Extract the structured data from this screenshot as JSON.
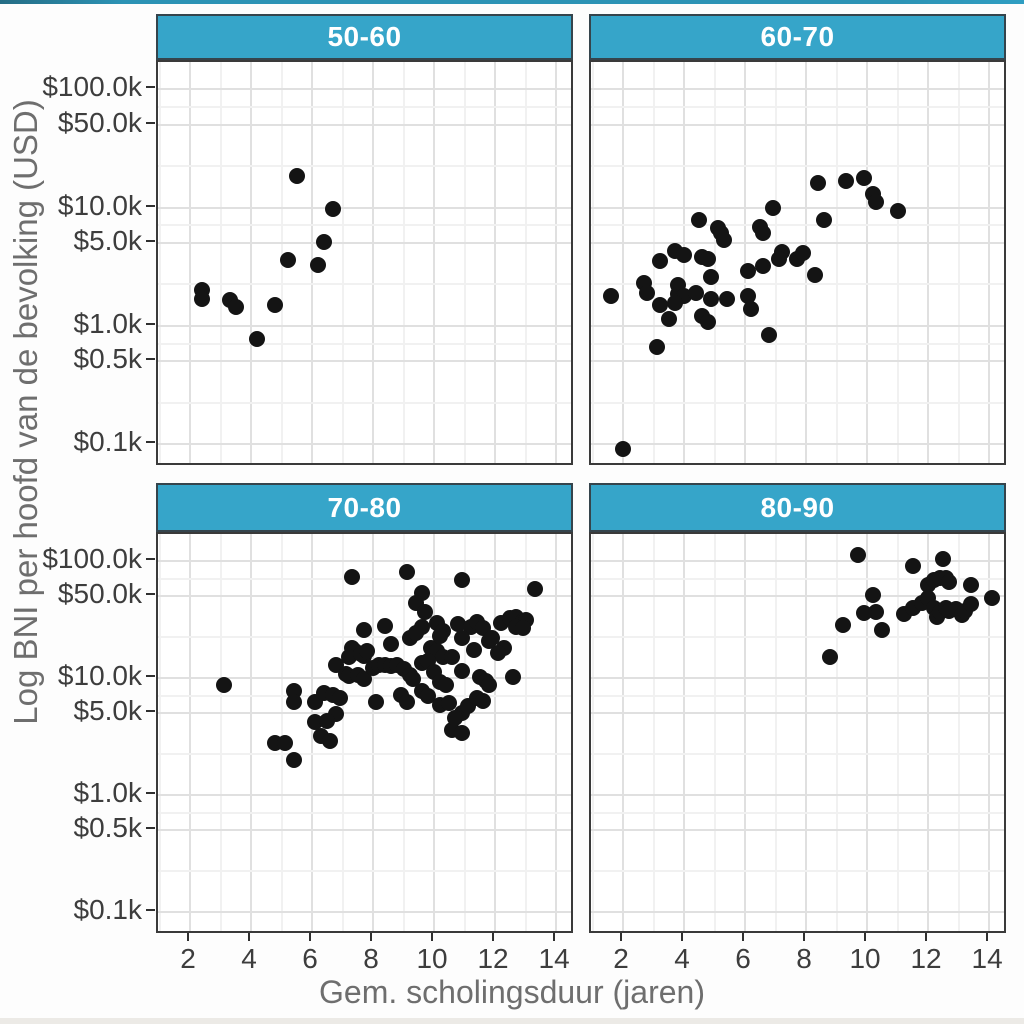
{
  "chart_data": {
    "type": "scatter",
    "facets": [
      "50-60",
      "60-70",
      "70-80",
      "80-90"
    ],
    "xlabel": "Gem. scholingsduur (jaren)",
    "ylabel": "Log BNI per hoofd van de bevolking (USD)",
    "x_ticks": [
      2,
      4,
      6,
      8,
      10,
      12,
      14
    ],
    "y_ticks": [
      {
        "value": 100000,
        "label": "$100.0k"
      },
      {
        "value": 50000,
        "label": "$50.0k"
      },
      {
        "value": 10000,
        "label": "$10.0k"
      },
      {
        "value": 5000,
        "label": "$5.0k"
      },
      {
        "value": 1000,
        "label": "$1.0k"
      },
      {
        "value": 500,
        "label": "$0.5k"
      },
      {
        "value": 100,
        "label": "$0.1k"
      }
    ],
    "y_minor_gridlines": [
      224,
      707,
      2240,
      7070,
      22400,
      70700
    ],
    "xlim": [
      0.95,
      14.62
    ],
    "ylim": [
      64,
      170000
    ],
    "y_scale": "log10",
    "grid": {
      "major": true,
      "minor": true
    },
    "legend": "none",
    "colors": {
      "point": "#141414",
      "strip_fill": "#36A5C9",
      "strip_text": "#FFFFFF",
      "strip_border": "#35444C",
      "panel_border": "#3A3A3A",
      "grid_major": "#E0E0E0",
      "grid_minor": "#F1F1F1",
      "tick_label": "#3D3D3D",
      "axis_title": "#6E6E6E"
    },
    "series": [
      {
        "name": "50-60",
        "points": [
          [
            5.5,
            18500
          ],
          [
            6.7,
            9700
          ],
          [
            6.4,
            5100
          ],
          [
            6.2,
            3250
          ],
          [
            5.2,
            3600
          ],
          [
            2.4,
            2000
          ],
          [
            2.4,
            1670
          ],
          [
            3.3,
            1660
          ],
          [
            3.5,
            1440
          ],
          [
            4.8,
            1500
          ],
          [
            4.2,
            780
          ]
        ]
      },
      {
        "name": "60-70",
        "points": [
          [
            8.4,
            16200
          ],
          [
            9.3,
            16600
          ],
          [
            9.9,
            17800
          ],
          [
            10.2,
            12900
          ],
          [
            10.3,
            11200
          ],
          [
            11.0,
            9300
          ],
          [
            6.9,
            10000
          ],
          [
            8.6,
            7900
          ],
          [
            4.5,
            7800
          ],
          [
            5.1,
            6700
          ],
          [
            5.2,
            6100
          ],
          [
            5.3,
            5300
          ],
          [
            6.5,
            6900
          ],
          [
            6.6,
            6100
          ],
          [
            3.7,
            4300
          ],
          [
            4.0,
            4000
          ],
          [
            3.2,
            3500
          ],
          [
            4.6,
            3800
          ],
          [
            4.8,
            3700
          ],
          [
            7.2,
            4200
          ],
          [
            7.1,
            3700
          ],
          [
            7.7,
            3700
          ],
          [
            7.9,
            4100
          ],
          [
            6.1,
            2900
          ],
          [
            6.6,
            3200
          ],
          [
            8.3,
            2700
          ],
          [
            2.7,
            2300
          ],
          [
            2.8,
            1900
          ],
          [
            3.8,
            2200
          ],
          [
            3.8,
            1850
          ],
          [
            4.9,
            2600
          ],
          [
            4.0,
            1800
          ],
          [
            4.4,
            1900
          ],
          [
            1.6,
            1800
          ],
          [
            3.2,
            1500
          ],
          [
            3.7,
            1550
          ],
          [
            4.9,
            1700
          ],
          [
            5.4,
            1700
          ],
          [
            6.1,
            1800
          ],
          [
            6.2,
            1400
          ],
          [
            3.5,
            1150
          ],
          [
            4.6,
            1200
          ],
          [
            4.8,
            1070
          ],
          [
            6.8,
            840
          ],
          [
            3.1,
            660
          ],
          [
            2.0,
            90
          ]
        ]
      },
      {
        "name": "70-80",
        "points": [
          [
            7.3,
            73000
          ],
          [
            9.1,
            81000
          ],
          [
            10.9,
            69000
          ],
          [
            13.3,
            58000
          ],
          [
            9.6,
            53000
          ],
          [
            9.4,
            44000
          ],
          [
            9.7,
            37000
          ],
          [
            8.4,
            28000
          ],
          [
            7.7,
            25500
          ],
          [
            9.6,
            27500
          ],
          [
            10.1,
            29700
          ],
          [
            10.3,
            25000
          ],
          [
            10.8,
            28900
          ],
          [
            11.2,
            27500
          ],
          [
            11.4,
            30300
          ],
          [
            11.6,
            26700
          ],
          [
            12.2,
            29700
          ],
          [
            12.5,
            32300
          ],
          [
            12.7,
            33300
          ],
          [
            12.9,
            30900
          ],
          [
            13.0,
            31400
          ],
          [
            12.7,
            27500
          ],
          [
            12.9,
            26900
          ],
          [
            12.3,
            18100
          ],
          [
            12.1,
            16300
          ],
          [
            9.2,
            21900
          ],
          [
            9.4,
            24500
          ],
          [
            8.6,
            19500
          ],
          [
            9.9,
            18100
          ],
          [
            10.1,
            16900
          ],
          [
            10.3,
            15200
          ],
          [
            10.9,
            21900
          ],
          [
            11.3,
            17400
          ],
          [
            11.8,
            20900
          ],
          [
            11.9,
            21900
          ],
          [
            7.7,
            15500
          ],
          [
            10.2,
            22900
          ],
          [
            10.6,
            15200
          ],
          [
            7.3,
            18100
          ],
          [
            7.4,
            17000
          ],
          [
            7.2,
            15200
          ],
          [
            7.6,
            16000
          ],
          [
            7.8,
            17000
          ],
          [
            6.8,
            12900
          ],
          [
            7.1,
            10800
          ],
          [
            7.2,
            10500
          ],
          [
            7.5,
            10700
          ],
          [
            7.7,
            9800
          ],
          [
            8.0,
            12300
          ],
          [
            8.2,
            13000
          ],
          [
            8.4,
            12900
          ],
          [
            8.6,
            12600
          ],
          [
            8.8,
            12900
          ],
          [
            9.0,
            12000
          ],
          [
            9.2,
            10700
          ],
          [
            9.3,
            9900
          ],
          [
            9.6,
            13500
          ],
          [
            9.8,
            14100
          ],
          [
            10.0,
            11200
          ],
          [
            10.2,
            9200
          ],
          [
            10.4,
            8700
          ],
          [
            10.9,
            11500
          ],
          [
            11.5,
            10300
          ],
          [
            11.7,
            9400
          ],
          [
            11.8,
            8700
          ],
          [
            12.6,
            10200
          ],
          [
            9.6,
            7700
          ],
          [
            9.8,
            7100
          ],
          [
            10.2,
            5900
          ],
          [
            10.5,
            6100
          ],
          [
            10.9,
            5000
          ],
          [
            11.1,
            5800
          ],
          [
            11.4,
            6800
          ],
          [
            11.6,
            6400
          ],
          [
            10.6,
            3600
          ],
          [
            10.9,
            3400
          ],
          [
            10.7,
            4600
          ],
          [
            8.1,
            6300
          ],
          [
            8.9,
            7200
          ],
          [
            9.1,
            6200
          ],
          [
            5.4,
            7800
          ],
          [
            5.4,
            6300
          ],
          [
            6.1,
            6300
          ],
          [
            6.4,
            7400
          ],
          [
            6.7,
            7200
          ],
          [
            6.9,
            6800
          ],
          [
            6.8,
            4900
          ],
          [
            6.1,
            4200
          ],
          [
            6.5,
            4300
          ],
          [
            6.3,
            3200
          ],
          [
            6.6,
            2900
          ],
          [
            4.8,
            2800
          ],
          [
            5.1,
            2800
          ],
          [
            5.4,
            2000
          ],
          [
            3.1,
            8800
          ]
        ]
      },
      {
        "name": "80-90",
        "points": [
          [
            9.7,
            113000
          ],
          [
            11.5,
            90000
          ],
          [
            12.5,
            103000
          ],
          [
            12.0,
            62000
          ],
          [
            12.2,
            69000
          ],
          [
            12.4,
            72000
          ],
          [
            12.6,
            71000
          ],
          [
            12.7,
            66000
          ],
          [
            13.4,
            62000
          ],
          [
            14.1,
            48000
          ],
          [
            10.2,
            51000
          ],
          [
            10.3,
            37000
          ],
          [
            9.9,
            36000
          ],
          [
            11.2,
            35500
          ],
          [
            11.5,
            40000
          ],
          [
            11.8,
            44000
          ],
          [
            12.0,
            48000
          ],
          [
            12.2,
            40000
          ],
          [
            12.3,
            33300
          ],
          [
            12.4,
            37000
          ],
          [
            12.6,
            40000
          ],
          [
            12.7,
            37400
          ],
          [
            12.9,
            38900
          ],
          [
            13.1,
            34600
          ],
          [
            13.2,
            37400
          ],
          [
            13.4,
            42700
          ],
          [
            9.2,
            28400
          ],
          [
            10.5,
            25500
          ],
          [
            8.8,
            15100
          ]
        ]
      }
    ]
  }
}
